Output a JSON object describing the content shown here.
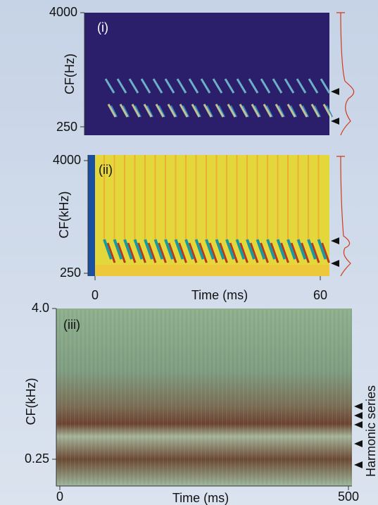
{
  "panels": [
    {
      "label": "(i)",
      "y_axis": {
        "label": "CF(Hz)",
        "ticks": [
          "4000",
          "250"
        ]
      }
    },
    {
      "label": "(ii)",
      "y_axis": {
        "label": "CF(kHz)",
        "ticks": [
          "4000",
          "250"
        ]
      },
      "x_axis": {
        "label": "Time (ms)",
        "ticks": [
          "0",
          "60"
        ]
      }
    },
    {
      "label": "(iii)",
      "y_axis": {
        "label": "CF(kHz)",
        "ticks": [
          "4.0",
          "0.25"
        ]
      },
      "x_axis": {
        "label": "Time (ms)",
        "ticks": [
          "0",
          "500"
        ]
      },
      "annotation": "Harmonic series"
    }
  ]
}
